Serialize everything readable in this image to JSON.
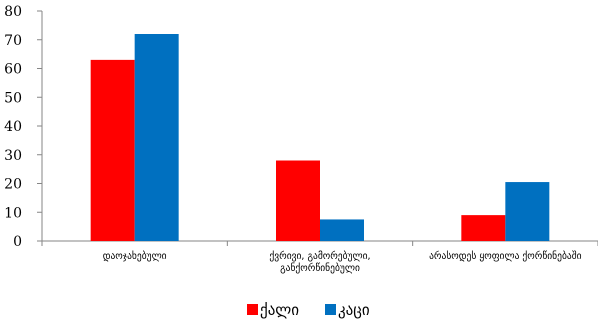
{
  "chart_data": {
    "type": "bar",
    "categories": [
      [
        "დაოჯახებული"
      ],
      [
        "ქვრივი, გამორებული,",
        "განქორწინებული"
      ],
      [
        "არასოდეს ყოფილა ქორწინებაში"
      ]
    ],
    "series": [
      {
        "name": "ქალი",
        "color": "#ff0000",
        "values": [
          63,
          28,
          9
        ]
      },
      {
        "name": "კაცი",
        "color": "#0070c0",
        "values": [
          72,
          7.5,
          20.5
        ]
      }
    ],
    "ylim": [
      0,
      80
    ],
    "yticks": [
      0,
      10,
      20,
      30,
      40,
      50,
      60,
      70,
      80
    ],
    "grid": false,
    "legend_position": "bottom"
  }
}
